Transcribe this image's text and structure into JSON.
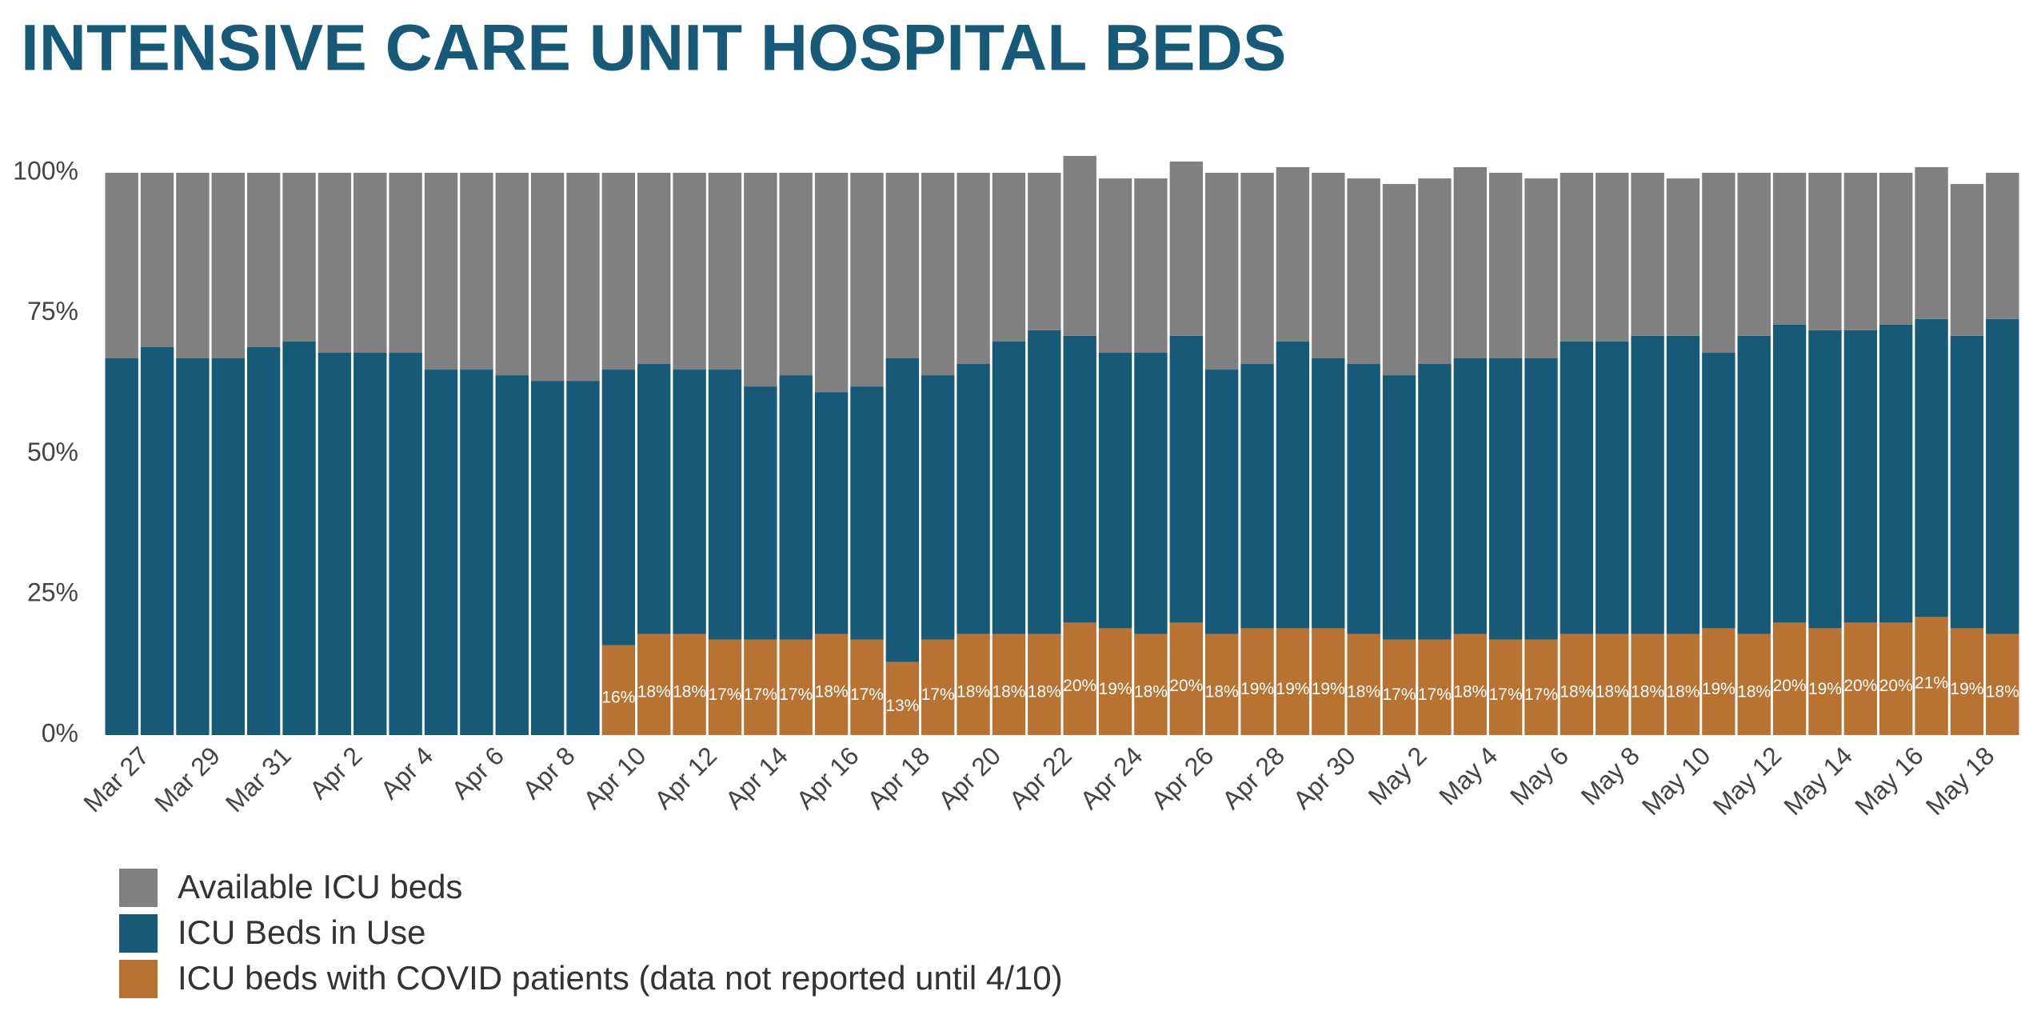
{
  "chart_data": {
    "type": "stacked_bar",
    "title": "INTENSIVE CARE UNIT HOSPITAL BEDS",
    "categories": [
      "Mar 27",
      null,
      "Mar 29",
      null,
      "Mar 31",
      null,
      "Apr 2",
      null,
      "Apr 4",
      null,
      "Apr 6",
      null,
      "Apr 8",
      null,
      "Apr 10",
      null,
      "Apr 12",
      null,
      "Apr 14",
      null,
      "Apr 16",
      null,
      "Apr 18",
      null,
      "Apr 20",
      null,
      "Apr 22",
      null,
      "Apr 24",
      null,
      "Apr 26",
      null,
      "Apr 28",
      null,
      "Apr 30",
      null,
      "May 2",
      null,
      "May 4",
      null,
      "May 6",
      null,
      "May 8",
      null,
      "May 10",
      null,
      "May 12",
      null,
      "May 14",
      null,
      "May 16",
      null,
      "May 18",
      null
    ],
    "series": [
      {
        "name": "Available ICU beds",
        "color": "#808080",
        "values": [
          33,
          31,
          33,
          33,
          31,
          30,
          32,
          32,
          32,
          35,
          35,
          36,
          37,
          37,
          35,
          34,
          35,
          35,
          38,
          36,
          39,
          38,
          33,
          36,
          34,
          30,
          28,
          32,
          31,
          31,
          31,
          35,
          34,
          31,
          33,
          33,
          34,
          33,
          34,
          33,
          32,
          30,
          30,
          29,
          28,
          32,
          29,
          27,
          28,
          28,
          27,
          27,
          27,
          26
        ]
      },
      {
        "name": "ICU Beds in Use",
        "color": "#175a78",
        "values": [
          67,
          69,
          67,
          67,
          69,
          70,
          68,
          68,
          68,
          65,
          65,
          64,
          63,
          63,
          49,
          48,
          47,
          48,
          45,
          47,
          43,
          45,
          54,
          47,
          48,
          52,
          54,
          51,
          49,
          50,
          51,
          47,
          47,
          51,
          48,
          48,
          47,
          49,
          49,
          50,
          50,
          52,
          52,
          53,
          53,
          49,
          53,
          53,
          53,
          52,
          53,
          53,
          52,
          56
        ]
      },
      {
        "name": "ICU beds with COVID patients (data not reported until 4/10)",
        "color": "#b87333",
        "values": [
          null,
          null,
          null,
          null,
          null,
          null,
          null,
          null,
          null,
          null,
          null,
          null,
          null,
          null,
          16,
          18,
          18,
          17,
          17,
          17,
          18,
          17,
          13,
          17,
          18,
          18,
          18,
          20,
          19,
          18,
          20,
          18,
          19,
          19,
          19,
          18,
          17,
          17,
          18,
          17,
          17,
          18,
          18,
          18,
          18,
          19,
          18,
          20,
          19,
          20,
          20,
          21,
          19,
          18
        ],
        "value_labels": [
          null,
          null,
          null,
          null,
          null,
          null,
          null,
          null,
          null,
          null,
          null,
          null,
          null,
          null,
          "16%",
          "18%",
          "18%",
          "17%",
          "17%",
          "17%",
          "18%",
          "17%",
          "13%",
          "17%",
          "18%",
          "18%",
          "18%",
          "20%",
          "19%",
          "18%",
          "20%",
          "18%",
          "19%",
          "19%",
          "19%",
          "18%",
          "17%",
          "17%",
          "18%",
          "17%",
          "17%",
          "18%",
          "18%",
          "18%",
          "18%",
          "19%",
          "18%",
          "20%",
          "19%",
          "20%",
          "20%",
          "21%",
          "19%",
          "18%"
        ]
      }
    ],
    "ylim": [
      0,
      100
    ],
    "yticks": [
      {
        "value": 0,
        "label": "0%"
      },
      {
        "value": 25,
        "label": "25%"
      },
      {
        "value": 50,
        "label": "50%"
      },
      {
        "value": 75,
        "label": "75%"
      },
      {
        "value": 100,
        "label": "100%"
      }
    ],
    "legend": "bottom-left"
  }
}
